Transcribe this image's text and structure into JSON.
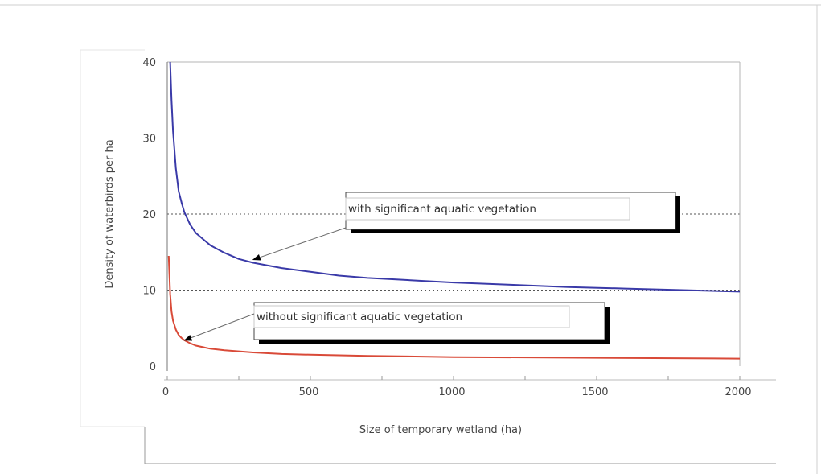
{
  "chart_data": {
    "type": "line",
    "title": "",
    "xlabel": "Size of temporary wetland (ha)",
    "ylabel": "Density of waterbirds per ha",
    "xlim": [
      0,
      2000
    ],
    "ylim": [
      0,
      40
    ],
    "x_ticks": [
      0,
      500,
      1000,
      1500,
      2000
    ],
    "y_ticks": [
      0,
      10,
      20,
      30,
      40
    ],
    "grid": "horizontal-dotted",
    "series": [
      {
        "name": "with significant aquatic vegetation",
        "color": "#3a3aa8",
        "x": [
          10,
          15,
          20,
          30,
          40,
          50,
          60,
          80,
          100,
          150,
          200,
          250,
          300,
          400,
          500,
          600,
          700,
          800,
          900,
          1000,
          1200,
          1400,
          1600,
          1800,
          2000
        ],
        "y": [
          40,
          35,
          31,
          26,
          23,
          21.5,
          20.2,
          18.6,
          17.5,
          15.9,
          14.9,
          14.1,
          13.6,
          12.9,
          12.4,
          11.9,
          11.6,
          11.4,
          11.2,
          11.0,
          10.7,
          10.4,
          10.2,
          10.0,
          9.8
        ]
      },
      {
        "name": "without significant aquatic vegetation",
        "color": "#d94a38",
        "x": [
          5,
          10,
          15,
          20,
          30,
          40,
          50,
          60,
          80,
          100,
          150,
          200,
          300,
          400,
          500,
          700,
          1000,
          1500,
          2000
        ],
        "y": [
          14.5,
          9.5,
          7.2,
          6.0,
          4.8,
          4.1,
          3.7,
          3.4,
          3.0,
          2.7,
          2.3,
          2.1,
          1.8,
          1.6,
          1.5,
          1.35,
          1.2,
          1.1,
          1.0
        ]
      }
    ],
    "annotations": [
      {
        "text": "with significant aquatic vegetation",
        "target": [
          300,
          14.0
        ]
      },
      {
        "text": "without significant aquatic vegetation",
        "target": [
          60,
          3.4
        ]
      }
    ]
  }
}
